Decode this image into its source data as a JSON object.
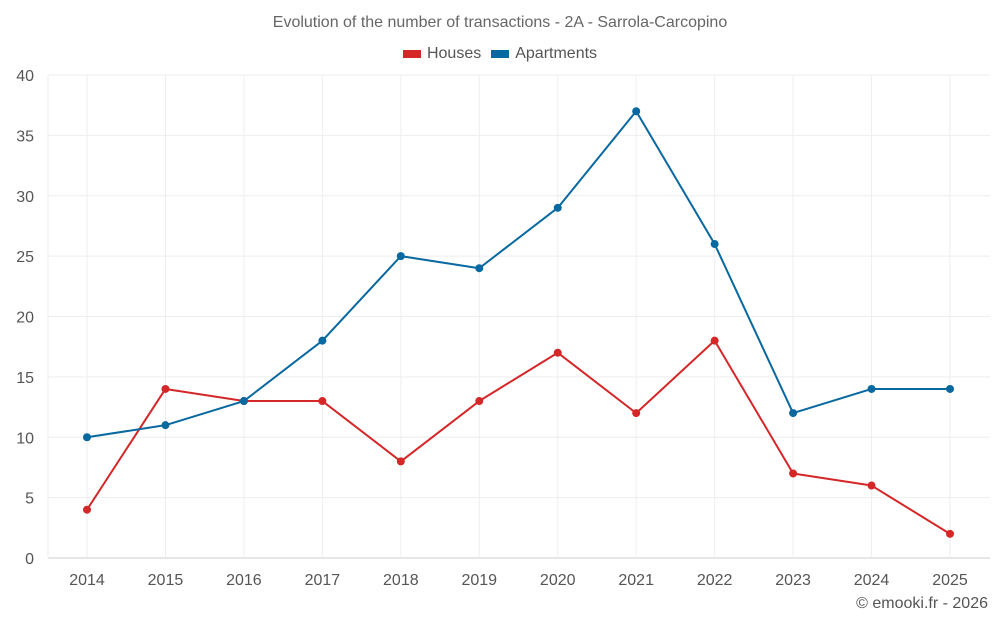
{
  "chart_data": {
    "type": "line",
    "title": "Evolution of the number of transactions - 2A - Sarrola-Carcopino",
    "categories": [
      "2014",
      "2015",
      "2016",
      "2017",
      "2018",
      "2019",
      "2020",
      "2021",
      "2022",
      "2023",
      "2024",
      "2025"
    ],
    "series": [
      {
        "name": "Houses",
        "color": "#d62728",
        "values": [
          4,
          14,
          13,
          13,
          8,
          13,
          17,
          12,
          18,
          7,
          6,
          2
        ]
      },
      {
        "name": "Apartments",
        "color": "#0868a0",
        "values": [
          10,
          11,
          13,
          18,
          25,
          24,
          29,
          37,
          26,
          12,
          14,
          14
        ]
      }
    ],
    "ylim": [
      0,
      40
    ],
    "yticks": [
      "0",
      "5",
      "10",
      "15",
      "20",
      "25",
      "30",
      "35",
      "40"
    ],
    "xlabel": "",
    "ylabel": "",
    "grid": true,
    "legend": "top-center"
  },
  "footer": "© emooki.fr - 2026"
}
